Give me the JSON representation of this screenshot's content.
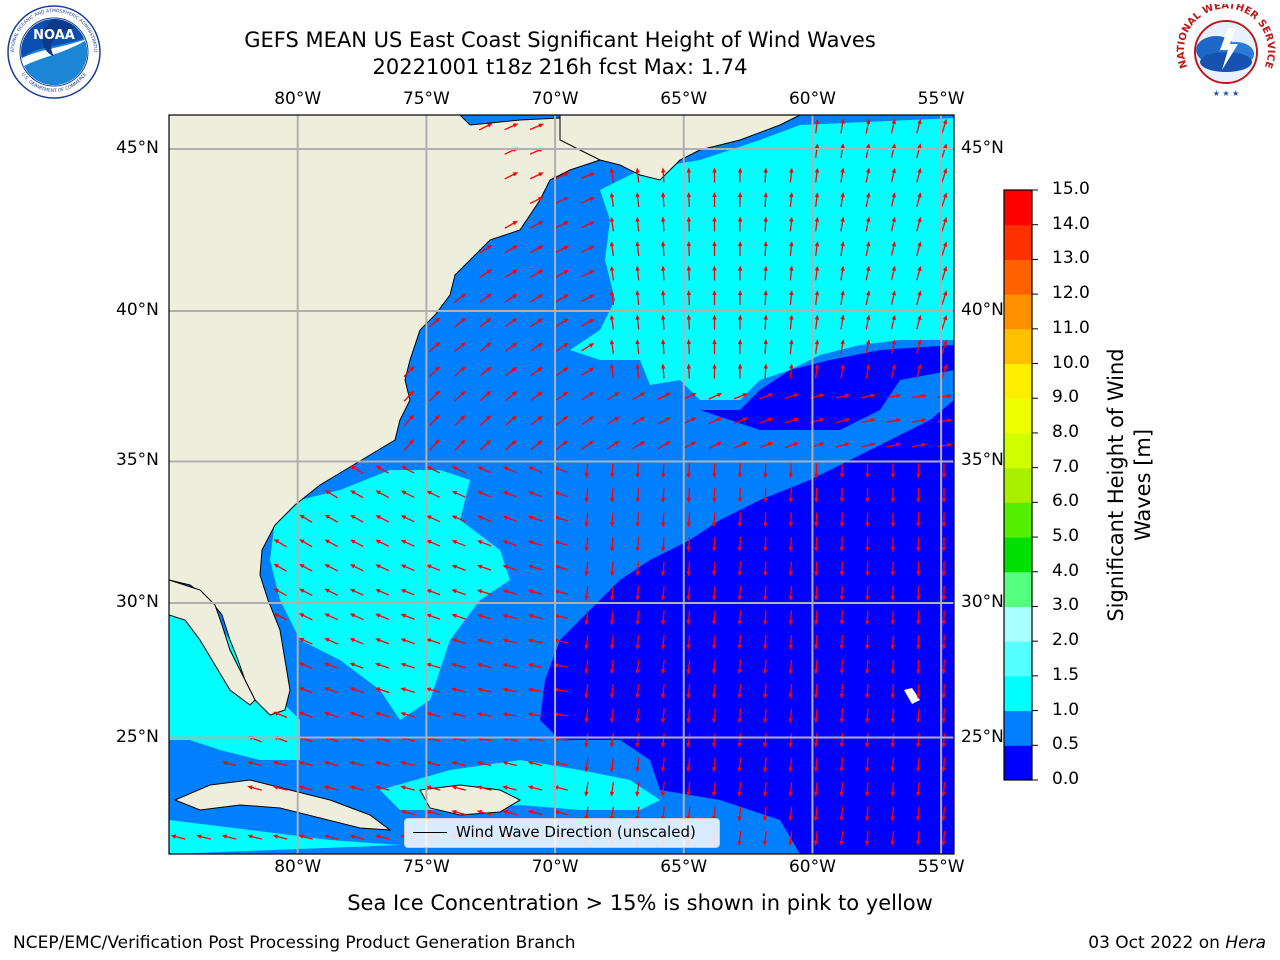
{
  "header": {
    "title_line1": "GEFS MEAN US East Coast Significant Height of Wind Waves",
    "title_line2": "20221001 t18z 216h fcst   Max: 1.74"
  },
  "logos": {
    "noaa_text": "NOAA",
    "noaa_ring": "NATIONAL OCEANIC AND ATMOSPHERIC ADMINISTRATION",
    "noaa_ring_bottom": "U.S. DEPARTMENT OF COMMERCE",
    "nws_ring": "NATIONAL WEATHER SERVICE"
  },
  "map": {
    "lon_labels": [
      "80°W",
      "75°W",
      "70°W",
      "65°W",
      "60°W",
      "55°W"
    ],
    "lat_labels": [
      "45°N",
      "40°N",
      "35°N",
      "30°N",
      "25°N"
    ],
    "lon_values": [
      -80,
      -75,
      -70,
      -65,
      -60,
      -55
    ],
    "lat_values": [
      45,
      40,
      35,
      30,
      25
    ],
    "extent": {
      "lon": [
        -85,
        -54.5
      ],
      "lat": [
        20.5,
        46
      ]
    },
    "colors": {
      "land": "#eeeedc",
      "arrow": "#ff0000",
      "grid": "#b0b0b0",
      "coast": "#000000"
    },
    "legend_label": "Wind Wave Direction (unscaled)"
  },
  "colorbar": {
    "title_line1": "Significant Height of Wind",
    "title_line2": "Waves [m]",
    "ticks": [
      "0.0",
      "0.5",
      "1.0",
      "1.5",
      "2.0",
      "3.0",
      "4.0",
      "5.0",
      "6.0",
      "7.0",
      "8.0",
      "9.0",
      "10.0",
      "11.0",
      "12.0",
      "13.0",
      "14.0",
      "15.0"
    ],
    "colors": [
      "#0000ff",
      "#0080ff",
      "#00ffff",
      "#55ffff",
      "#aaffff",
      "#55ff80",
      "#00e000",
      "#55ee00",
      "#aaee00",
      "#d0ff00",
      "#eeff00",
      "#ffee00",
      "#ffc000",
      "#ff9000",
      "#ff6000",
      "#ff3000",
      "#ff0000"
    ]
  },
  "footer": {
    "note": "Sea Ice Concentration > 15% is shown in pink to yellow",
    "left": "NCEP/EMC/Verification Post Processing Product Generation Branch",
    "right_date": "03 Oct 2022 on",
    "right_machine": "Hera"
  }
}
